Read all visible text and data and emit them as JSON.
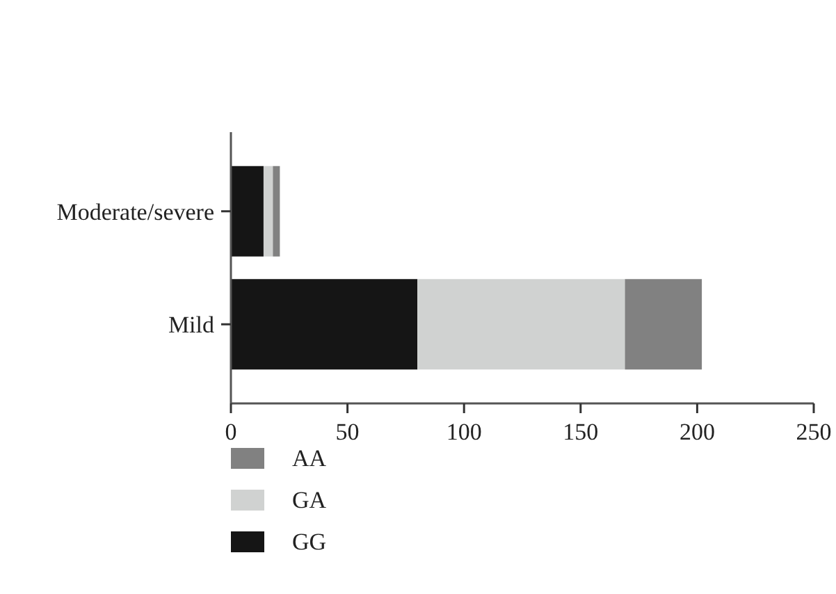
{
  "chart_data": {
    "type": "bar",
    "orientation": "horizontal",
    "stacked": true,
    "categories": [
      "Moderate/severe",
      "Mild"
    ],
    "series": [
      {
        "name": "GG",
        "color": "#151515",
        "values": [
          14,
          80
        ]
      },
      {
        "name": "GA",
        "color": "#d0d2d1",
        "values": [
          4,
          89
        ]
      },
      {
        "name": "AA",
        "color": "#818181",
        "values": [
          3,
          33
        ]
      }
    ],
    "xlim": [
      0,
      250
    ],
    "xticks": [
      0,
      50,
      100,
      150,
      200,
      250
    ],
    "legend": "bottom"
  }
}
